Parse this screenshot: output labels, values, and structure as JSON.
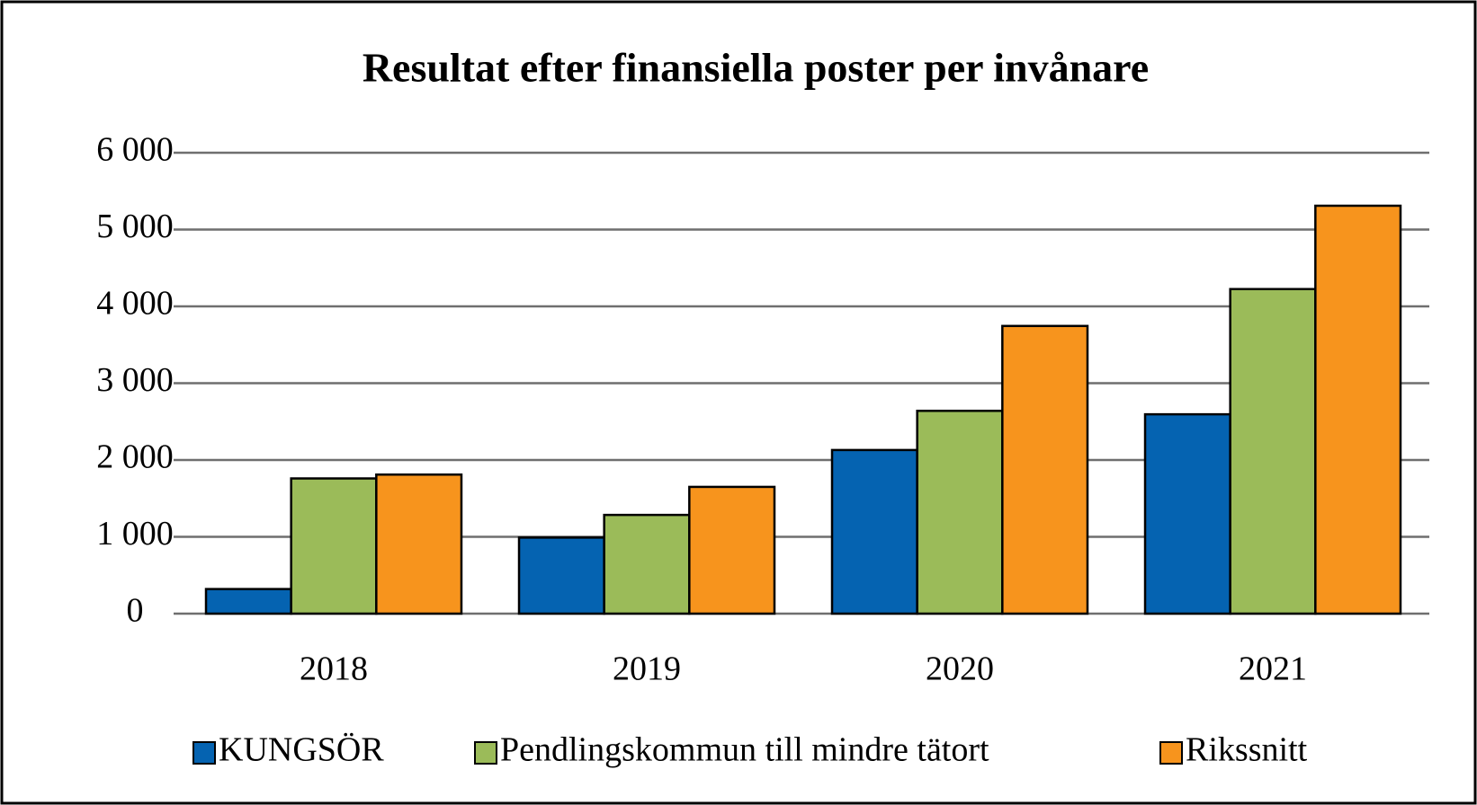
{
  "chart_data": {
    "type": "bar",
    "title": "Resultat efter finansiella poster per invånare",
    "categories": [
      "2018",
      "2019",
      "2020",
      "2021"
    ],
    "series": [
      {
        "name": "KUNGSÖR",
        "color": "#0563b1",
        "values": [
          320,
          990,
          2130,
          2595
        ]
      },
      {
        "name": "Pendlingskommun till mindre tätort",
        "color": "#9bbb59",
        "values": [
          1760,
          1285,
          2640,
          4225
        ]
      },
      {
        "name": "Rikssnitt",
        "color": "#f7941d",
        "values": [
          1810,
          1650,
          3745,
          5310
        ]
      }
    ],
    "ylim": [
      0,
      6000
    ],
    "yticks": [
      0,
      {
        "value": 1000,
        "label": "1 000"
      },
      {
        "value": 2000,
        "label": "2 000"
      },
      {
        "value": 3000,
        "label": "3 000"
      },
      {
        "value": 4000,
        "label": "4 000"
      },
      {
        "value": 5000,
        "label": "5 000"
      },
      {
        "value": 6000,
        "label": "6 000"
      }
    ],
    "grid": true,
    "legend": "bottom"
  }
}
